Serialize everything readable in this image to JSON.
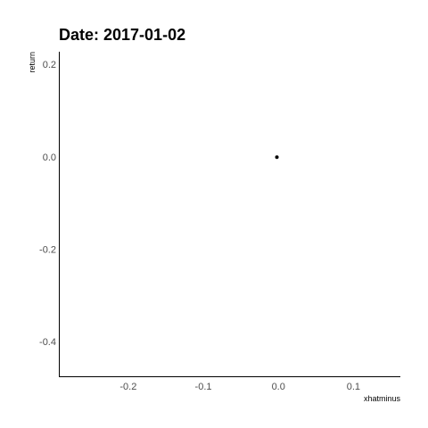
{
  "chart_data": {
    "type": "scatter",
    "title": "Date: 2017-01-02",
    "xlabel": "xhatminus",
    "ylabel": "return",
    "xlim": [
      -0.2925,
      0.1625
    ],
    "ylim": [
      -0.4775,
      0.2275
    ],
    "x_ticks": [
      -0.2,
      -0.1,
      0.0,
      0.1
    ],
    "x_tick_labels": [
      "-0.2",
      "-0.1",
      "0.0",
      "0.1"
    ],
    "y_ticks": [
      0.2,
      0.0,
      -0.2,
      -0.4
    ],
    "y_tick_labels": [
      "0.2",
      "0.0",
      "-0.2",
      "-0.4"
    ],
    "points": [
      {
        "x": -0.002,
        "y": -0.001
      }
    ],
    "grid": false,
    "legend": "none",
    "point_color": "#000000"
  }
}
